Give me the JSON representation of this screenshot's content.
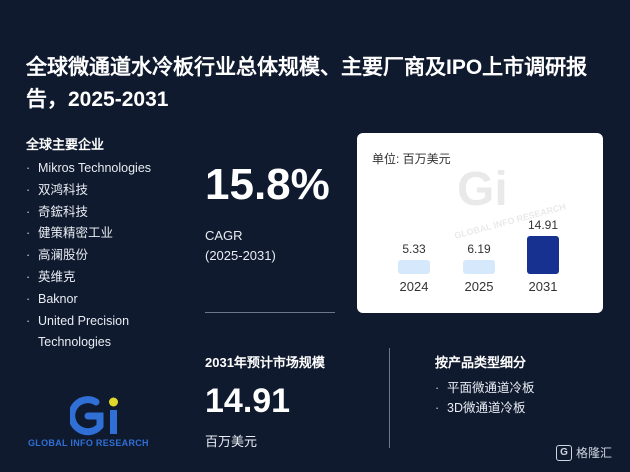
{
  "title": "全球微通道水冷板行业总体规模、主要厂商及IPO上市调研报告，2025-2031",
  "companies_heading": "全球主要企业",
  "companies": [
    "Mikros Technologies",
    "双鸿科技",
    "奇鋐科技",
    "健策精密工业",
    "高澜股份",
    "英维克",
    "Baknor",
    "United Precision Technologies"
  ],
  "cagr": {
    "value": "15.8%",
    "label": "CAGR",
    "period": "(2025-2031)"
  },
  "market": {
    "heading": "2031年预计市场规模",
    "value": "14.91",
    "unit": "百万美元"
  },
  "types": {
    "heading": "按产品类型细分",
    "items": [
      "平面微通道冷板",
      "3D微通道冷板"
    ]
  },
  "logo_text": "GLOBAL INFO RESEARCH",
  "footer_brand": "格隆汇",
  "colors": {
    "bar_light": "#d6e8fb",
    "bar_dark": "#16318f",
    "background": "#0f1a2e"
  },
  "chart_data": {
    "type": "bar",
    "unit_label": "单位: 百万美元",
    "categories": [
      "2024",
      "2025",
      "2031"
    ],
    "values": [
      5.33,
      6.19,
      14.91
    ],
    "value_labels": [
      "5.33",
      "6.19",
      "14.91"
    ],
    "ylim": [
      0,
      16
    ],
    "highlight_index": 2
  }
}
